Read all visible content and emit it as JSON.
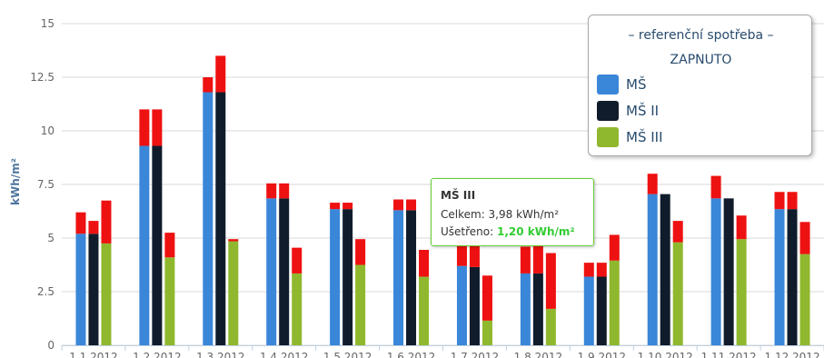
{
  "colors": {
    "ms": "#3a86d9",
    "ms2": "#101c2b",
    "ms3": "#8fb82e",
    "exceed": "#ee1111",
    "saving": "#33ee33",
    "grid": "#d8d8d8",
    "tooltip_border": "#66cc33"
  },
  "chart_data": {
    "type": "bar",
    "stacked": true,
    "ylabel": "kWh/m²",
    "ylim": [
      0,
      15
    ],
    "yticks": [
      "0",
      "2.5",
      "5",
      "7.5",
      "10",
      "12.5",
      "15"
    ],
    "grid": true,
    "legend_position": "top-right",
    "categories": [
      "1.1.2012",
      "1.2.2012",
      "1.3.2012",
      "1.4.2012",
      "1.5.2012",
      "1.6.2012",
      "1.7.2012",
      "1.8.2012",
      "1.9.2012",
      "1.10.2012",
      "1.11.2012",
      "1.12.2012"
    ],
    "series": [
      {
        "name": "MŠ",
        "consumption": [
          5.2,
          9.3,
          11.8,
          6.85,
          6.35,
          6.3,
          3.7,
          3.35,
          3.2,
          7.05,
          6.85,
          6.35
        ],
        "reference": [
          6.2,
          11.0,
          12.5,
          7.55,
          6.65,
          6.8,
          4.9,
          4.6,
          3.85,
          8.0,
          7.9,
          7.15
        ]
      },
      {
        "name": "MŠ II",
        "consumption": [
          5.2,
          9.3,
          11.8,
          6.85,
          6.35,
          6.3,
          3.65,
          3.35,
          3.2,
          7.05,
          6.85,
          6.35
        ],
        "reference": [
          5.8,
          11.0,
          13.5,
          7.55,
          6.65,
          6.8,
          4.9,
          4.7,
          3.85,
          7.05,
          6.85,
          7.15
        ]
      },
      {
        "name": "MŠ III",
        "consumption": [
          4.75,
          4.1,
          4.85,
          3.35,
          3.75,
          3.2,
          1.15,
          1.7,
          3.95,
          4.8,
          4.95,
          4.25
        ],
        "reference": [
          6.75,
          5.25,
          4.95,
          4.55,
          4.95,
          4.45,
          3.25,
          4.3,
          5.15,
          5.8,
          6.05,
          5.75
        ]
      }
    ]
  },
  "legend": {
    "title": "– referenční spotřeba –",
    "toggle": "ZAPNUTO",
    "items": [
      "MŠ",
      "MŠ II",
      "MŠ III"
    ]
  },
  "tooltip": {
    "title": "MŠ III",
    "total_label": "Celkem: 3,98 kWh/m²",
    "saved_label": "Ušetřeno:",
    "saved_value": "1,20 kWh/m²"
  }
}
